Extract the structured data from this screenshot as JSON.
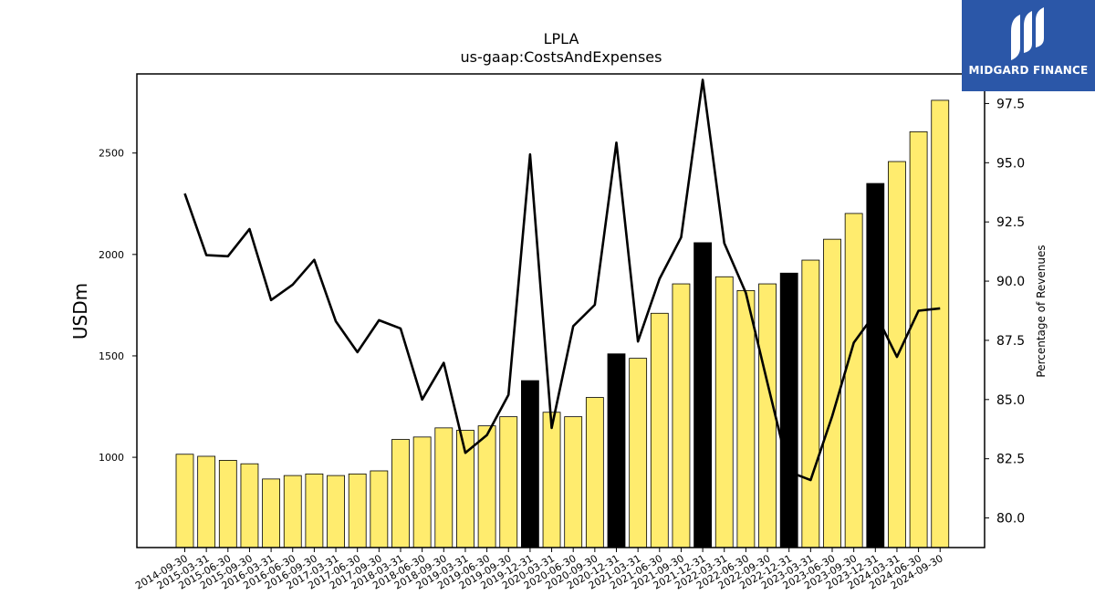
{
  "chart_data": {
    "type": "bar",
    "title": "LPLA",
    "subtitle": "us-gaap:CostsAndExpenses",
    "ylabel": "USDm",
    "y2label": "Percentage of Revenues",
    "ylim": [
      555,
      2890
    ],
    "y2lim": [
      78.75,
      98.75
    ],
    "yticks": [
      1000,
      1500,
      2000,
      2500
    ],
    "y2ticks": [
      80.0,
      82.5,
      85.0,
      87.5,
      90.0,
      92.5,
      95.0,
      97.5
    ],
    "categories": [
      "2014-09-30",
      "2015-03-31",
      "2015-06-30",
      "2015-09-30",
      "2016-03-31",
      "2016-06-30",
      "2016-09-30",
      "2017-03-31",
      "2017-06-30",
      "2017-09-30",
      "2018-03-31",
      "2018-06-30",
      "2018-09-30",
      "2019-03-31",
      "2019-06-30",
      "2019-09-30",
      "2019-12-31",
      "2020-03-31",
      "2020-06-30",
      "2020-09-30",
      "2020-12-31",
      "2021-03-31",
      "2021-06-30",
      "2021-09-30",
      "2021-12-31",
      "2022-03-31",
      "2022-06-30",
      "2022-09-30",
      "2022-12-31",
      "2023-03-31",
      "2023-06-30",
      "2023-09-30",
      "2023-12-31",
      "2024-03-31",
      "2024-06-30",
      "2024-09-30"
    ],
    "series": [
      {
        "type": "bar",
        "values": [
          1015,
          1005,
          985,
          968,
          893,
          910,
          918,
          910,
          918,
          933,
          1088,
          1100,
          1145,
          1133,
          1155,
          1200,
          1378,
          1222,
          1200,
          1295,
          1510,
          1488,
          1710,
          1855,
          2058,
          1890,
          1822,
          1855,
          1908,
          1972,
          2075,
          2202,
          2350,
          2458,
          2605,
          2760
        ],
        "highlight": [
          false,
          false,
          false,
          false,
          false,
          false,
          false,
          false,
          false,
          false,
          false,
          false,
          false,
          false,
          false,
          false,
          true,
          false,
          false,
          false,
          true,
          false,
          false,
          false,
          true,
          false,
          false,
          false,
          true,
          false,
          false,
          false,
          true,
          false,
          false,
          false
        ]
      },
      {
        "type": "line",
        "axis": "right",
        "values": [
          93.7,
          91.1,
          91.05,
          92.2,
          89.2,
          89.85,
          90.9,
          88.3,
          87.0,
          88.35,
          88.0,
          85.0,
          86.55,
          82.75,
          83.5,
          85.2,
          95.35,
          83.8,
          88.1,
          89.0,
          95.85,
          87.45,
          90.1,
          91.85,
          98.5,
          91.6,
          89.5,
          85.7,
          81.95,
          81.6,
          84.3,
          87.4,
          88.65,
          86.8,
          88.75,
          88.85
        ]
      }
    ],
    "colors": {
      "bar": "#ffec6e",
      "bar_highlight": "#000000",
      "bar_edge": "#000000",
      "line": "#000000"
    },
    "grid": false
  },
  "logo": {
    "text": "MIDGARD FINANCE"
  }
}
